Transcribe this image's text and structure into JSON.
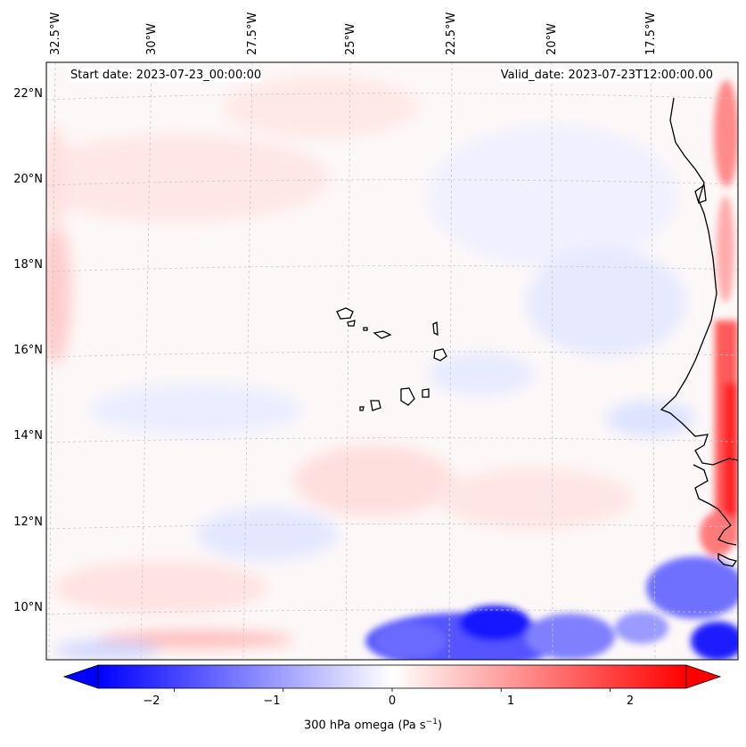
{
  "header": {
    "start_date": "Start date: 2023-07-23_00:00:00",
    "valid_date": "Valid_date: 2023-07-23T12:00:00.00"
  },
  "axes": {
    "lon_ticks": [
      "32.5°W",
      "30°W",
      "27.5°W",
      "25°W",
      "22.5°W",
      "20°W",
      "17.5°W"
    ],
    "lat_ticks": [
      "22°N",
      "20°N",
      "18°N",
      "16°N",
      "14°N",
      "12°N",
      "10°N"
    ]
  },
  "colorbar": {
    "label": "300 hPa omega (Pa s",
    "label_unit_sup": "−1",
    "label_close": ")",
    "ticks": [
      "−2",
      "−1",
      "0",
      "1",
      "2"
    ],
    "vmin": -2.7,
    "vmax": 2.7,
    "low_color": "#0000ff",
    "mid_color": "#ffffff",
    "high_color": "#ff0000",
    "extend": "both"
  },
  "chart_data": {
    "type": "heatmap",
    "title": "",
    "variable": "300 hPa omega",
    "units": "Pa s^-1",
    "lon_range": [
      -33,
      -15.5
    ],
    "lat_range": [
      9,
      22.7
    ],
    "colormap": "bwr",
    "features": [
      {
        "region": "western edge near 17-18°N",
        "sign": "positive",
        "approx_value": 0.4
      },
      {
        "region": "African coast 13-14°N",
        "sign": "positive",
        "approx_value": 2.0
      },
      {
        "region": "southern band 9-10°N, 24-20°W",
        "sign": "negative",
        "approx_value": -2.0
      },
      {
        "region": "southeast corner 10°N, 17°W",
        "sign": "negative",
        "approx_value": -2.2
      },
      {
        "region": "southern strip 9.5°N, 30°W",
        "sign": "positive",
        "approx_value": 0.6
      }
    ]
  }
}
